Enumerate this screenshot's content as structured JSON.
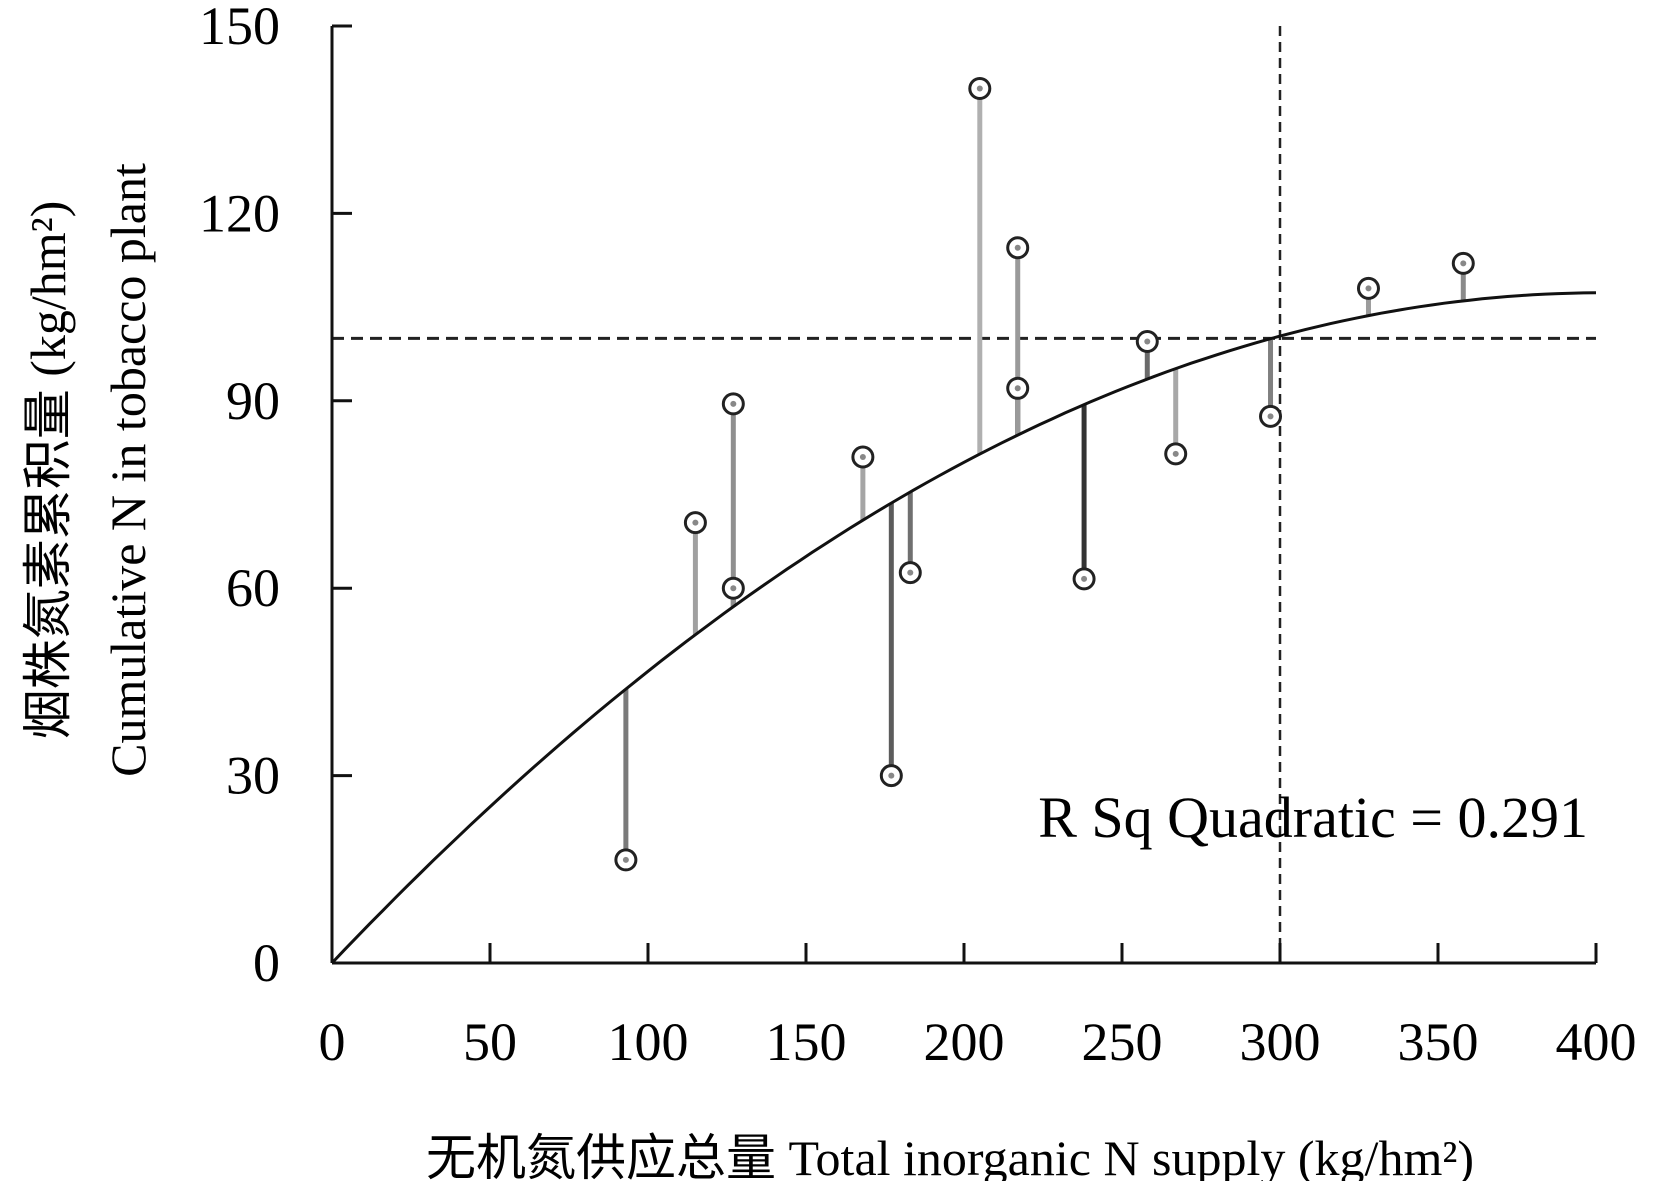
{
  "chart_data": {
    "type": "scatter",
    "xlabel": "无机氮供应总量 Total inorganic N supply (kg/hm²)",
    "ylabel_line1": "烟株氮素累积量 (kg/hm²)",
    "ylabel_line2": "Cumulative N in tobacco plant",
    "xlim": [
      0,
      400
    ],
    "ylim": [
      0,
      150
    ],
    "x_ticks": [
      0,
      50,
      100,
      150,
      200,
      250,
      300,
      350,
      400
    ],
    "y_ticks": [
      0,
      30,
      60,
      90,
      120,
      150
    ],
    "x_tick_labels": [
      "0",
      "50",
      "100",
      "150",
      "200",
      "250",
      "300",
      "350",
      "400"
    ],
    "y_tick_labels": [
      "0",
      "30",
      "60",
      "90",
      "120",
      "150"
    ],
    "annotation": "R Sq Quadratic = 0.291",
    "points": [
      {
        "x": 93,
        "y": 16.5
      },
      {
        "x": 115,
        "y": 70.5
      },
      {
        "x": 127,
        "y": 60
      },
      {
        "x": 127,
        "y": 89.5
      },
      {
        "x": 168,
        "y": 81
      },
      {
        "x": 177,
        "y": 30
      },
      {
        "x": 183,
        "y": 62.5
      },
      {
        "x": 205,
        "y": 140
      },
      {
        "x": 217,
        "y": 92
      },
      {
        "x": 217,
        "y": 114.5
      },
      {
        "x": 238,
        "y": 61.5
      },
      {
        "x": 258,
        "y": 99.5
      },
      {
        "x": 267,
        "y": 81.5
      },
      {
        "x": 297,
        "y": 87.5
      },
      {
        "x": 328,
        "y": 108
      },
      {
        "x": 358,
        "y": 112
      }
    ],
    "fit_curve": {
      "type": "quadratic",
      "x_range": [
        0,
        400
      ],
      "coefficients": {
        "a": -0.0006625,
        "b": 0.53325,
        "c": 0
      }
    },
    "reference_lines": {
      "horizontal_y": 100,
      "vertical_x": 300
    },
    "grid": false
  }
}
